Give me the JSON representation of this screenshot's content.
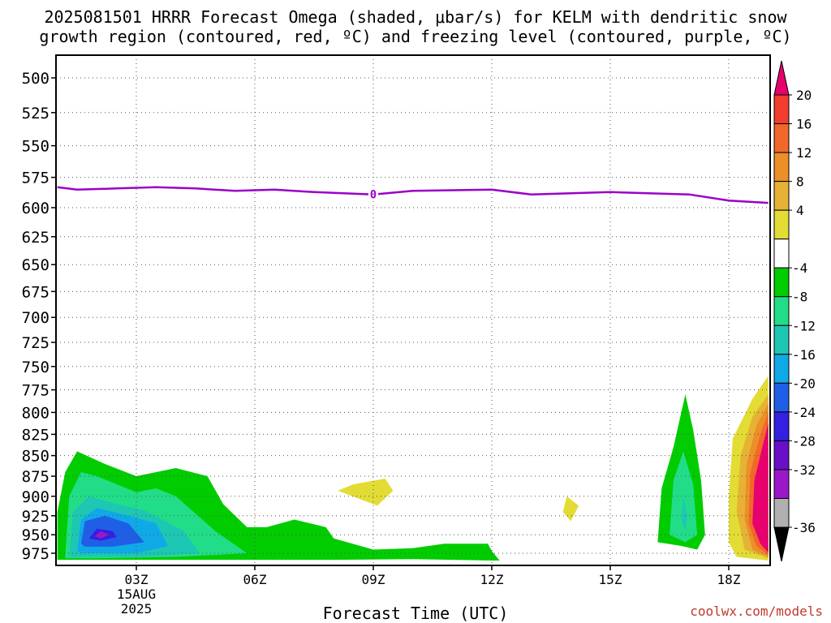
{
  "title_line1": "2025081501 HRRR Forecast Omega (shaded, μbar/s) for KELM with dendritic snow",
  "title_line2": "growth region (contoured, red, ºC) and freezing level (contoured, purple, ºC)",
  "watermark": "coolwx.com/models",
  "chart_data": {
    "type": "contour",
    "title": "2025081501 HRRR Forecast Omega (shaded, μbar/s) for KELM with dendritic snow growth region (contoured, red, ºC) and freezing level (contoured, purple, ºC)",
    "xlabel": "Forecast Time (UTC)",
    "ylabel": "",
    "x_ticks": [
      "03Z",
      "06Z",
      "09Z",
      "12Z",
      "15Z",
      "18Z"
    ],
    "x_tick_hours": [
      3,
      6,
      9,
      12,
      15,
      18
    ],
    "x_date_label": [
      "15AUG",
      "2025"
    ],
    "xlim_hours": [
      1,
      19
    ],
    "y_ticks": [
      500,
      525,
      550,
      575,
      600,
      625,
      650,
      675,
      700,
      725,
      750,
      775,
      800,
      825,
      850,
      875,
      900,
      925,
      950,
      975
    ],
    "ylim_hpa": [
      480,
      995
    ],
    "y_inverted": true,
    "y_scale": "log-pressure",
    "grid": true,
    "colorbar": {
      "labels": [
        "20",
        "16",
        "12",
        "8",
        "4",
        "-4",
        "-8",
        "-12",
        "-16",
        "-20",
        "-24",
        "-28",
        "-32",
        "-36"
      ],
      "colors": [
        "#e8006e",
        "#f33d2f",
        "#f2672b",
        "#ec8f28",
        "#e6b236",
        "#e3dc34",
        "#ffffff",
        "#00cc00",
        "#22dd88",
        "#1ec6b4",
        "#10a9e8",
        "#1f5fe6",
        "#3320e0",
        "#6a0fc8",
        "#9b18c8",
        "#b0b0b0",
        "#000000"
      ]
    },
    "freezing_level": {
      "label": "0",
      "color": "#9b00c8",
      "points": [
        [
          1.0,
          583
        ],
        [
          1.5,
          585
        ],
        [
          2.5,
          584
        ],
        [
          3.5,
          583
        ],
        [
          4.5,
          584
        ],
        [
          5.5,
          586
        ],
        [
          6.5,
          585
        ],
        [
          7.5,
          587
        ],
        [
          9.0,
          589
        ],
        [
          10.0,
          586
        ],
        [
          12.0,
          585
        ],
        [
          13.0,
          589
        ],
        [
          15.0,
          587
        ],
        [
          17.0,
          589
        ],
        [
          18.0,
          594
        ],
        [
          19.0,
          596
        ]
      ]
    },
    "omega_regions": [
      {
        "level": -8,
        "color": "#00cc00",
        "points": [
          [
            1.0,
            978
          ],
          [
            1.0,
            920
          ],
          [
            1.2,
            870
          ],
          [
            1.5,
            845
          ],
          [
            2.2,
            860
          ],
          [
            3.0,
            875
          ],
          [
            4.0,
            865
          ],
          [
            4.8,
            875
          ],
          [
            5.2,
            910
          ],
          [
            5.8,
            940
          ],
          [
            6.3,
            940
          ],
          [
            7.0,
            930
          ],
          [
            7.8,
            940
          ],
          [
            8.0,
            955
          ],
          [
            9.0,
            970
          ],
          [
            10.0,
            968
          ],
          [
            10.8,
            962
          ],
          [
            11.9,
            962
          ],
          [
            12.0,
            972
          ],
          [
            12.2,
            985
          ],
          [
            12.0,
            985
          ],
          [
            10.0,
            983
          ],
          [
            8.0,
            984
          ],
          [
            5.0,
            984
          ],
          [
            2.0,
            984
          ],
          [
            1.0,
            984
          ]
        ]
      },
      {
        "level": -12,
        "color": "#22dd88",
        "points": [
          [
            1.2,
            978
          ],
          [
            1.3,
            900
          ],
          [
            1.6,
            870
          ],
          [
            2.0,
            875
          ],
          [
            3.0,
            895
          ],
          [
            3.5,
            890
          ],
          [
            4.0,
            900
          ],
          [
            5.0,
            945
          ],
          [
            5.8,
            975
          ],
          [
            4.0,
            980
          ],
          [
            2.0,
            982
          ],
          [
            1.2,
            982
          ]
        ]
      },
      {
        "level": -16,
        "color": "#1ec6b4",
        "points": [
          [
            1.3,
            978
          ],
          [
            1.4,
            920
          ],
          [
            1.8,
            900
          ],
          [
            2.5,
            910
          ],
          [
            3.2,
            918
          ],
          [
            4.2,
            945
          ],
          [
            4.6,
            975
          ],
          [
            3.0,
            980
          ],
          [
            1.3,
            980
          ]
        ]
      },
      {
        "level": -20,
        "color": "#10a9e8",
        "points": [
          [
            1.5,
            972
          ],
          [
            1.6,
            930
          ],
          [
            2.0,
            915
          ],
          [
            2.8,
            925
          ],
          [
            3.5,
            935
          ],
          [
            3.8,
            965
          ],
          [
            3.0,
            975
          ],
          [
            1.6,
            975
          ]
        ]
      },
      {
        "level": -24,
        "color": "#1f5fe6",
        "points": [
          [
            1.6,
            962
          ],
          [
            1.7,
            932
          ],
          [
            2.2,
            925
          ],
          [
            2.8,
            935
          ],
          [
            3.2,
            960
          ],
          [
            2.4,
            966
          ],
          [
            1.7,
            966
          ]
        ]
      },
      {
        "level": -28,
        "color": "#3320e0",
        "points": [
          [
            1.8,
            955
          ],
          [
            2.0,
            942
          ],
          [
            2.4,
            945
          ],
          [
            2.5,
            953
          ],
          [
            2.1,
            958
          ]
        ]
      },
      {
        "level": -32,
        "color": "#9b18c8",
        "points": [
          [
            1.95,
            952
          ],
          [
            2.1,
            945
          ],
          [
            2.3,
            950
          ],
          [
            2.1,
            955
          ]
        ]
      },
      {
        "level": -8,
        "color": "#00cc00",
        "points": [
          [
            10.0,
            978
          ],
          [
            10.5,
            972
          ],
          [
            11.0,
            976
          ],
          [
            10.5,
            980
          ]
        ]
      },
      {
        "level": -8,
        "color": "#00cc00",
        "points": [
          [
            16.2,
            960
          ],
          [
            16.3,
            890
          ],
          [
            16.6,
            840
          ],
          [
            16.9,
            780
          ],
          [
            17.1,
            820
          ],
          [
            17.3,
            880
          ],
          [
            17.4,
            950
          ],
          [
            17.2,
            970
          ],
          [
            16.8,
            965
          ]
        ]
      },
      {
        "level": -12,
        "color": "#22dd88",
        "points": [
          [
            16.5,
            950
          ],
          [
            16.6,
            880
          ],
          [
            16.85,
            845
          ],
          [
            17.1,
            885
          ],
          [
            17.2,
            950
          ],
          [
            16.9,
            960
          ]
        ]
      },
      {
        "level": -16,
        "color": "#1ec6b4",
        "points": [
          [
            16.8,
            930
          ],
          [
            16.85,
            900
          ],
          [
            16.95,
            925
          ],
          [
            16.9,
            945
          ]
        ]
      },
      {
        "level": 4,
        "color": "#e3dc34",
        "points": [
          [
            8.1,
            893
          ],
          [
            8.5,
            885
          ],
          [
            9.3,
            878
          ],
          [
            9.5,
            893
          ],
          [
            9.1,
            912
          ]
        ]
      },
      {
        "level": 4,
        "color": "#e3dc34",
        "points": [
          [
            13.8,
            920
          ],
          [
            13.9,
            900
          ],
          [
            14.2,
            912
          ],
          [
            14.0,
            932
          ]
        ]
      },
      {
        "level": 4,
        "color": "#e3dc34",
        "points": [
          [
            19.0,
            760
          ],
          [
            18.6,
            785
          ],
          [
            18.1,
            830
          ],
          [
            18.0,
            900
          ],
          [
            18.0,
            960
          ],
          [
            18.2,
            980
          ],
          [
            19.0,
            985
          ]
        ]
      },
      {
        "level": 8,
        "color": "#e6b236",
        "points": [
          [
            19.0,
            780
          ],
          [
            18.6,
            805
          ],
          [
            18.3,
            850
          ],
          [
            18.2,
            920
          ],
          [
            18.4,
            970
          ],
          [
            19.0,
            982
          ]
        ]
      },
      {
        "level": 12,
        "color": "#ec8f28",
        "points": [
          [
            19.0,
            790
          ],
          [
            18.7,
            815
          ],
          [
            18.45,
            860
          ],
          [
            18.4,
            930
          ],
          [
            18.6,
            970
          ],
          [
            19.0,
            980
          ]
        ]
      },
      {
        "level": 16,
        "color": "#f2672b",
        "points": [
          [
            19.0,
            800
          ],
          [
            18.8,
            825
          ],
          [
            18.55,
            870
          ],
          [
            18.5,
            935
          ],
          [
            18.7,
            965
          ],
          [
            19.0,
            978
          ]
        ]
      },
      {
        "level": 20,
        "color": "#e8006e",
        "points": [
          [
            19.0,
            812
          ],
          [
            18.85,
            840
          ],
          [
            18.65,
            880
          ],
          [
            18.6,
            935
          ],
          [
            18.8,
            962
          ],
          [
            19.0,
            974
          ]
        ]
      }
    ],
    "surface_color": "#a0522d",
    "surface_hpa": 990
  }
}
